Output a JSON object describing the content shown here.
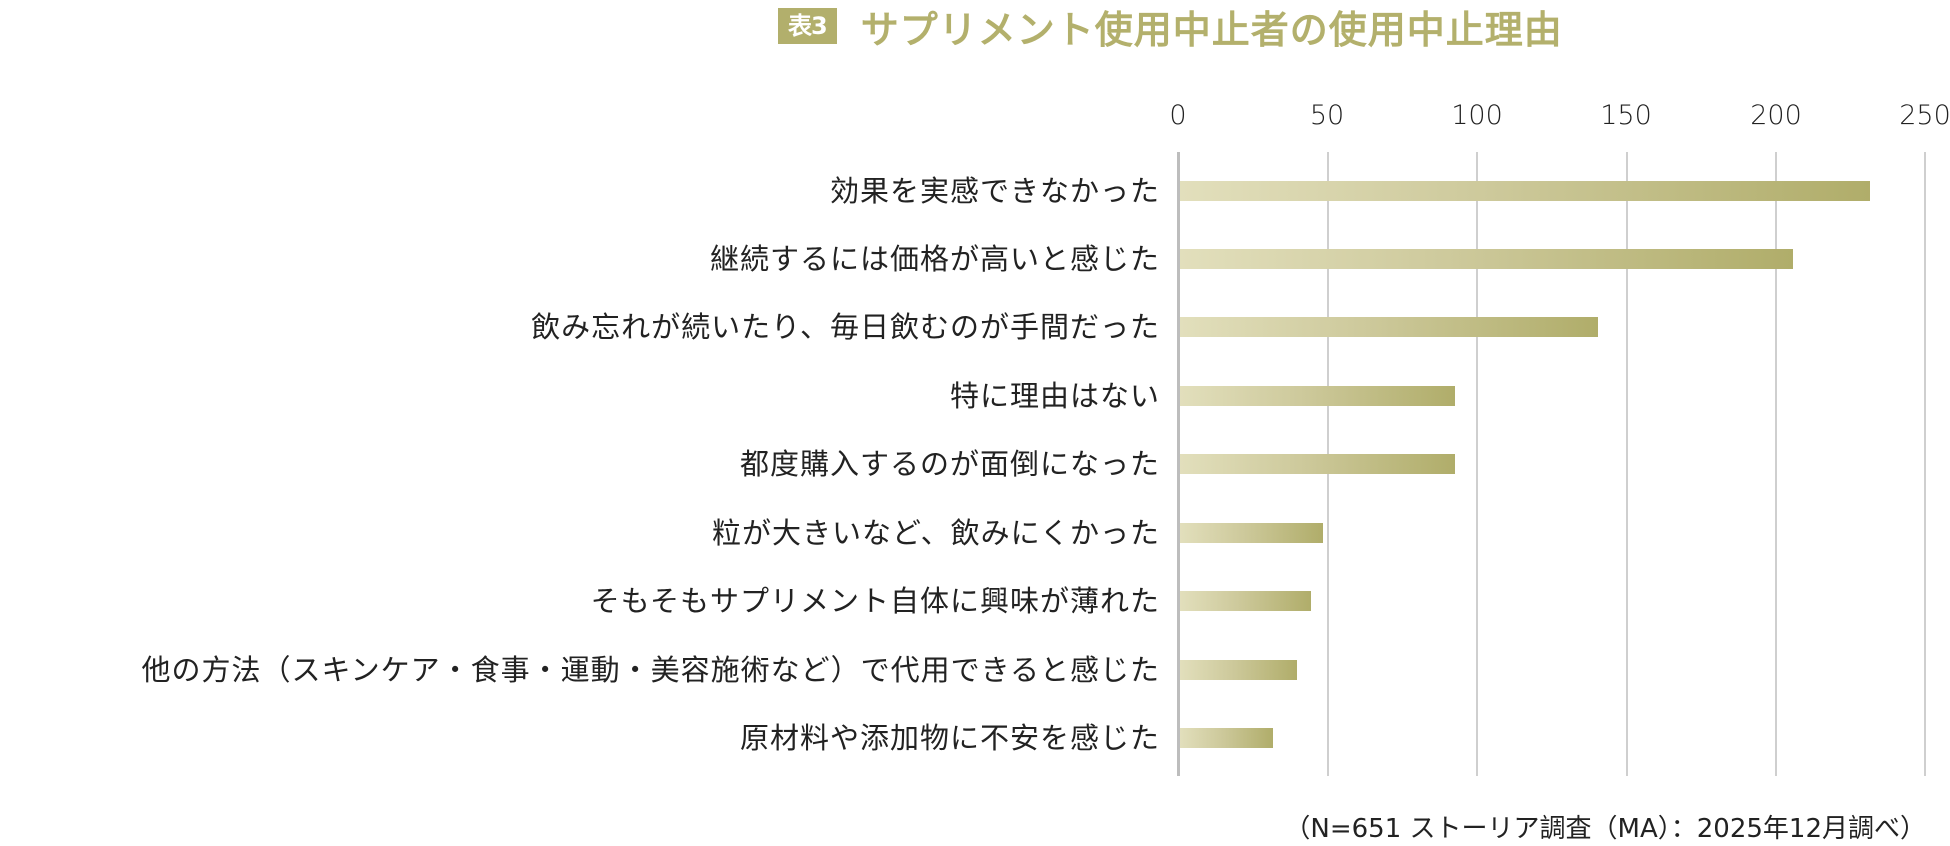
{
  "header": {
    "badge": "表3",
    "title": "サプリメント使用中止者の使用中止理由"
  },
  "axis": {
    "ticks": [
      "0",
      "50",
      "100",
      "150",
      "200",
      "250"
    ]
  },
  "rows": [
    {
      "label": "効果を実感できなかった",
      "value": 231
    },
    {
      "label": "継続するには価格が高いと感じた",
      "value": 205
    },
    {
      "label": "飲み忘れが続いたり、毎日飲むのが手間だった",
      "value": 140
    },
    {
      "label": "特に理由はない",
      "value": 92
    },
    {
      "label": "都度購入するのが面倒になった",
      "value": 92
    },
    {
      "label": "粒が大きいなど、飲みにくかった",
      "value": 48
    },
    {
      "label": "そもそもサプリメント自体に興味が薄れた",
      "value": 44
    },
    {
      "label": "他の方法（スキンケア・食事・運動・美容施術など）で代用できると感じた",
      "value": 39
    },
    {
      "label": "原材料や添加物に不安を感じた",
      "value": 31
    }
  ],
  "footnote": "（N=651 ストーリア調査（MA）：2025年12月調べ）",
  "colors": {
    "accent": "#b2af6c",
    "bar_start": "#e2dfbc",
    "bar_end": "#b0ad6a",
    "grid": "#cfcfcf"
  },
  "chart_data": {
    "type": "bar",
    "orientation": "horizontal",
    "title": "表3 サプリメント使用中止者の使用中止理由",
    "categories": [
      "効果を実感できなかった",
      "継続するには価格が高いと感じた",
      "飲み忘れが続いたり、毎日飲むのが手間だった",
      "特に理由はない",
      "都度購入するのが面倒になった",
      "粒が大きいなど、飲みにくかった",
      "そもそもサプリメント自体に興味が薄れた",
      "他の方法（スキンケア・食事・運動・美容施術など）で代用できると感じた",
      "原材料や添加物に不安を感じた"
    ],
    "values": [
      231,
      205,
      140,
      92,
      92,
      48,
      44,
      39,
      31
    ],
    "xlabel": "",
    "ylabel": "",
    "xlim": [
      0,
      250
    ],
    "xticks": [
      0,
      50,
      100,
      150,
      200,
      250
    ],
    "tick_position": "top",
    "grid": true,
    "legend": null,
    "note": "（N=651 ストーリア調査（MA）：2025年12月調べ）"
  }
}
